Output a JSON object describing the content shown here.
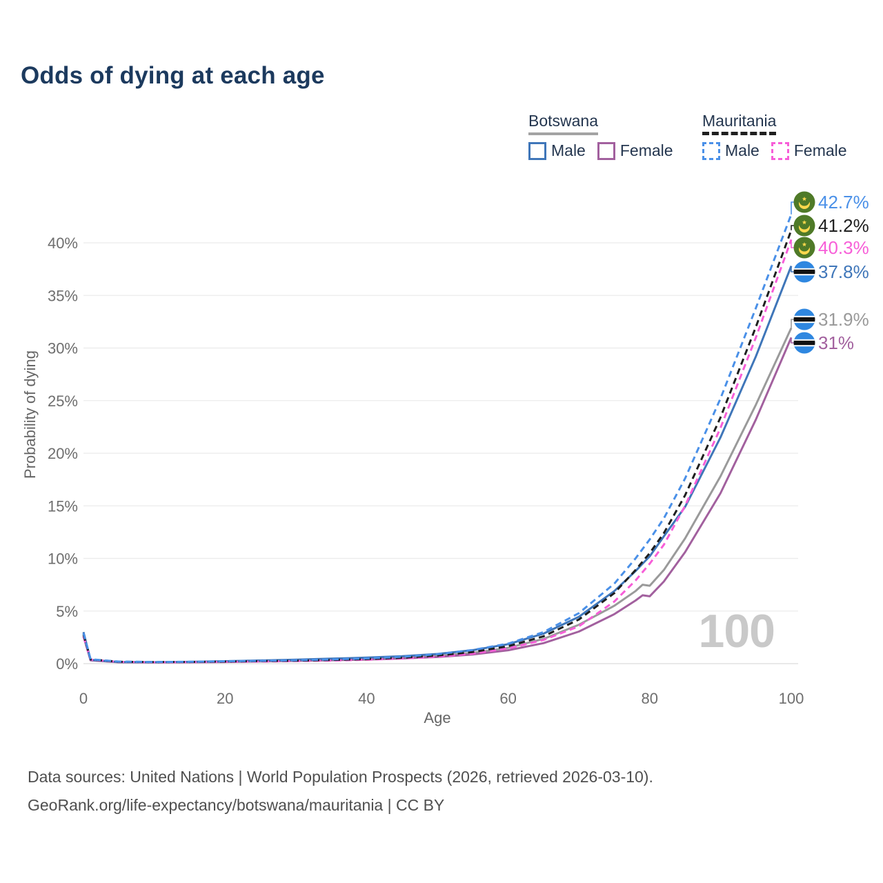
{
  "title": "Odds of dying at each age",
  "legend": {
    "groups": [
      {
        "country": "Botswana",
        "line_style": "solid",
        "underline_color": "#a3a3a3",
        "items": [
          {
            "label": "Male",
            "color": "#3f76b9"
          },
          {
            "label": "Female",
            "color": "#a2609e"
          }
        ]
      },
      {
        "country": "Mauritania",
        "line_style": "dashed",
        "underline_color": "#1f1f1f",
        "items": [
          {
            "label": "Male",
            "color": "#4a90e8"
          },
          {
            "label": "Female",
            "color": "#f75ed8"
          }
        ]
      }
    ]
  },
  "watermark": "100",
  "footer": {
    "line1": "Data sources: United Nations | World Population Prospects (2026, retrieved 2026-03-10).",
    "line2": "GeoRank.org/life-expectancy/botswana/mauritania | CC BY"
  },
  "chart_data": {
    "type": "line",
    "title": "Odds of dying at each age",
    "xlabel": "Age",
    "ylabel": "Probability of dying",
    "xlim": [
      0,
      100
    ],
    "ylim_percent": [
      0,
      44
    ],
    "grid": "horizontal-only",
    "x_tick_values": [
      0,
      20,
      40,
      60,
      80,
      100
    ],
    "y_tick_values": [
      0,
      5,
      10,
      15,
      20,
      25,
      30,
      35,
      40
    ],
    "y_tick_suffix": "%",
    "ages": [
      0,
      1,
      5,
      10,
      15,
      20,
      25,
      30,
      35,
      40,
      45,
      50,
      55,
      60,
      65,
      70,
      75,
      78,
      79,
      80,
      82,
      85,
      90,
      95,
      100
    ],
    "series": [
      {
        "name": "Mauritania Male",
        "country": "Mauritania",
        "sex": "Male",
        "color": "#4a90e8",
        "dash": "dashed",
        "end_label": "42.7%",
        "end_value_percent": 42.7,
        "flag": "mauritania",
        "values_percent": [
          2.9,
          0.42,
          0.2,
          0.16,
          0.18,
          0.23,
          0.27,
          0.32,
          0.4,
          0.5,
          0.65,
          0.9,
          1.3,
          1.9,
          3.0,
          4.8,
          7.6,
          10.0,
          10.9,
          11.8,
          13.8,
          17.6,
          25.2,
          33.8,
          42.7
        ]
      },
      {
        "name": "Mauritania Both sexes",
        "country": "Mauritania",
        "sex": "Both",
        "color": "#1f1f1f",
        "dash": "dashed",
        "end_label": "41.2%",
        "end_value_percent": 41.2,
        "flag": "mauritania",
        "values_percent": [
          2.75,
          0.4,
          0.18,
          0.15,
          0.16,
          0.2,
          0.24,
          0.28,
          0.35,
          0.43,
          0.56,
          0.77,
          1.1,
          1.65,
          2.6,
          4.2,
          6.7,
          8.9,
          9.7,
          10.5,
          12.4,
          16.0,
          23.4,
          32.0,
          41.2
        ]
      },
      {
        "name": "Mauritania Female",
        "country": "Mauritania",
        "sex": "Female",
        "color": "#f75ed8",
        "dash": "dashed",
        "end_label": "40.3%",
        "end_value_percent": 40.3,
        "flag": "mauritania",
        "values_percent": [
          2.6,
          0.38,
          0.17,
          0.13,
          0.14,
          0.17,
          0.2,
          0.24,
          0.29,
          0.37,
          0.48,
          0.66,
          0.95,
          1.45,
          2.25,
          3.55,
          5.9,
          7.9,
          8.7,
          9.5,
          11.3,
          15.0,
          22.4,
          31.0,
          40.3
        ]
      },
      {
        "name": "Botswana Male",
        "country": "Botswana",
        "sex": "Male",
        "color": "#3f76b9",
        "dash": "solid",
        "end_label": "37.8%",
        "end_value_percent": 37.8,
        "flag": "botswana",
        "values_percent": [
          3.0,
          0.36,
          0.16,
          0.14,
          0.17,
          0.23,
          0.3,
          0.38,
          0.47,
          0.57,
          0.7,
          0.92,
          1.28,
          1.85,
          2.85,
          4.45,
          6.9,
          8.8,
          9.5,
          10.2,
          12.1,
          14.9,
          21.5,
          29.2,
          37.8
        ]
      },
      {
        "name": "Botswana Both sexes",
        "country": "Botswana",
        "sex": "Both",
        "color": "#9a9a9a",
        "dash": "solid",
        "end_label": "31.9%",
        "end_value_percent": 31.9,
        "flag": "botswana",
        "values_percent": [
          2.85,
          0.34,
          0.15,
          0.13,
          0.15,
          0.19,
          0.25,
          0.31,
          0.38,
          0.46,
          0.57,
          0.74,
          1.02,
          1.5,
          2.35,
          3.7,
          5.5,
          6.9,
          7.5,
          7.4,
          8.9,
          11.9,
          17.8,
          24.6,
          31.9
        ]
      },
      {
        "name": "Botswana Female",
        "country": "Botswana",
        "sex": "Female",
        "color": "#a2609e",
        "dash": "solid",
        "end_label": "31%",
        "end_value_percent": 31.0,
        "flag": "botswana",
        "values_percent": [
          2.6,
          0.31,
          0.13,
          0.11,
          0.13,
          0.16,
          0.21,
          0.26,
          0.32,
          0.39,
          0.49,
          0.63,
          0.87,
          1.27,
          1.95,
          3.05,
          4.7,
          6.0,
          6.5,
          6.4,
          7.8,
          10.6,
          16.2,
          23.2,
          31.0
        ]
      }
    ],
    "flag_colors": {
      "mauritania_green": "#4f7a28",
      "mauritania_yellow": "#ffd84d",
      "botswana_blue": "#2f87e0",
      "botswana_black": "#111111",
      "botswana_white": "#ffffff"
    }
  }
}
